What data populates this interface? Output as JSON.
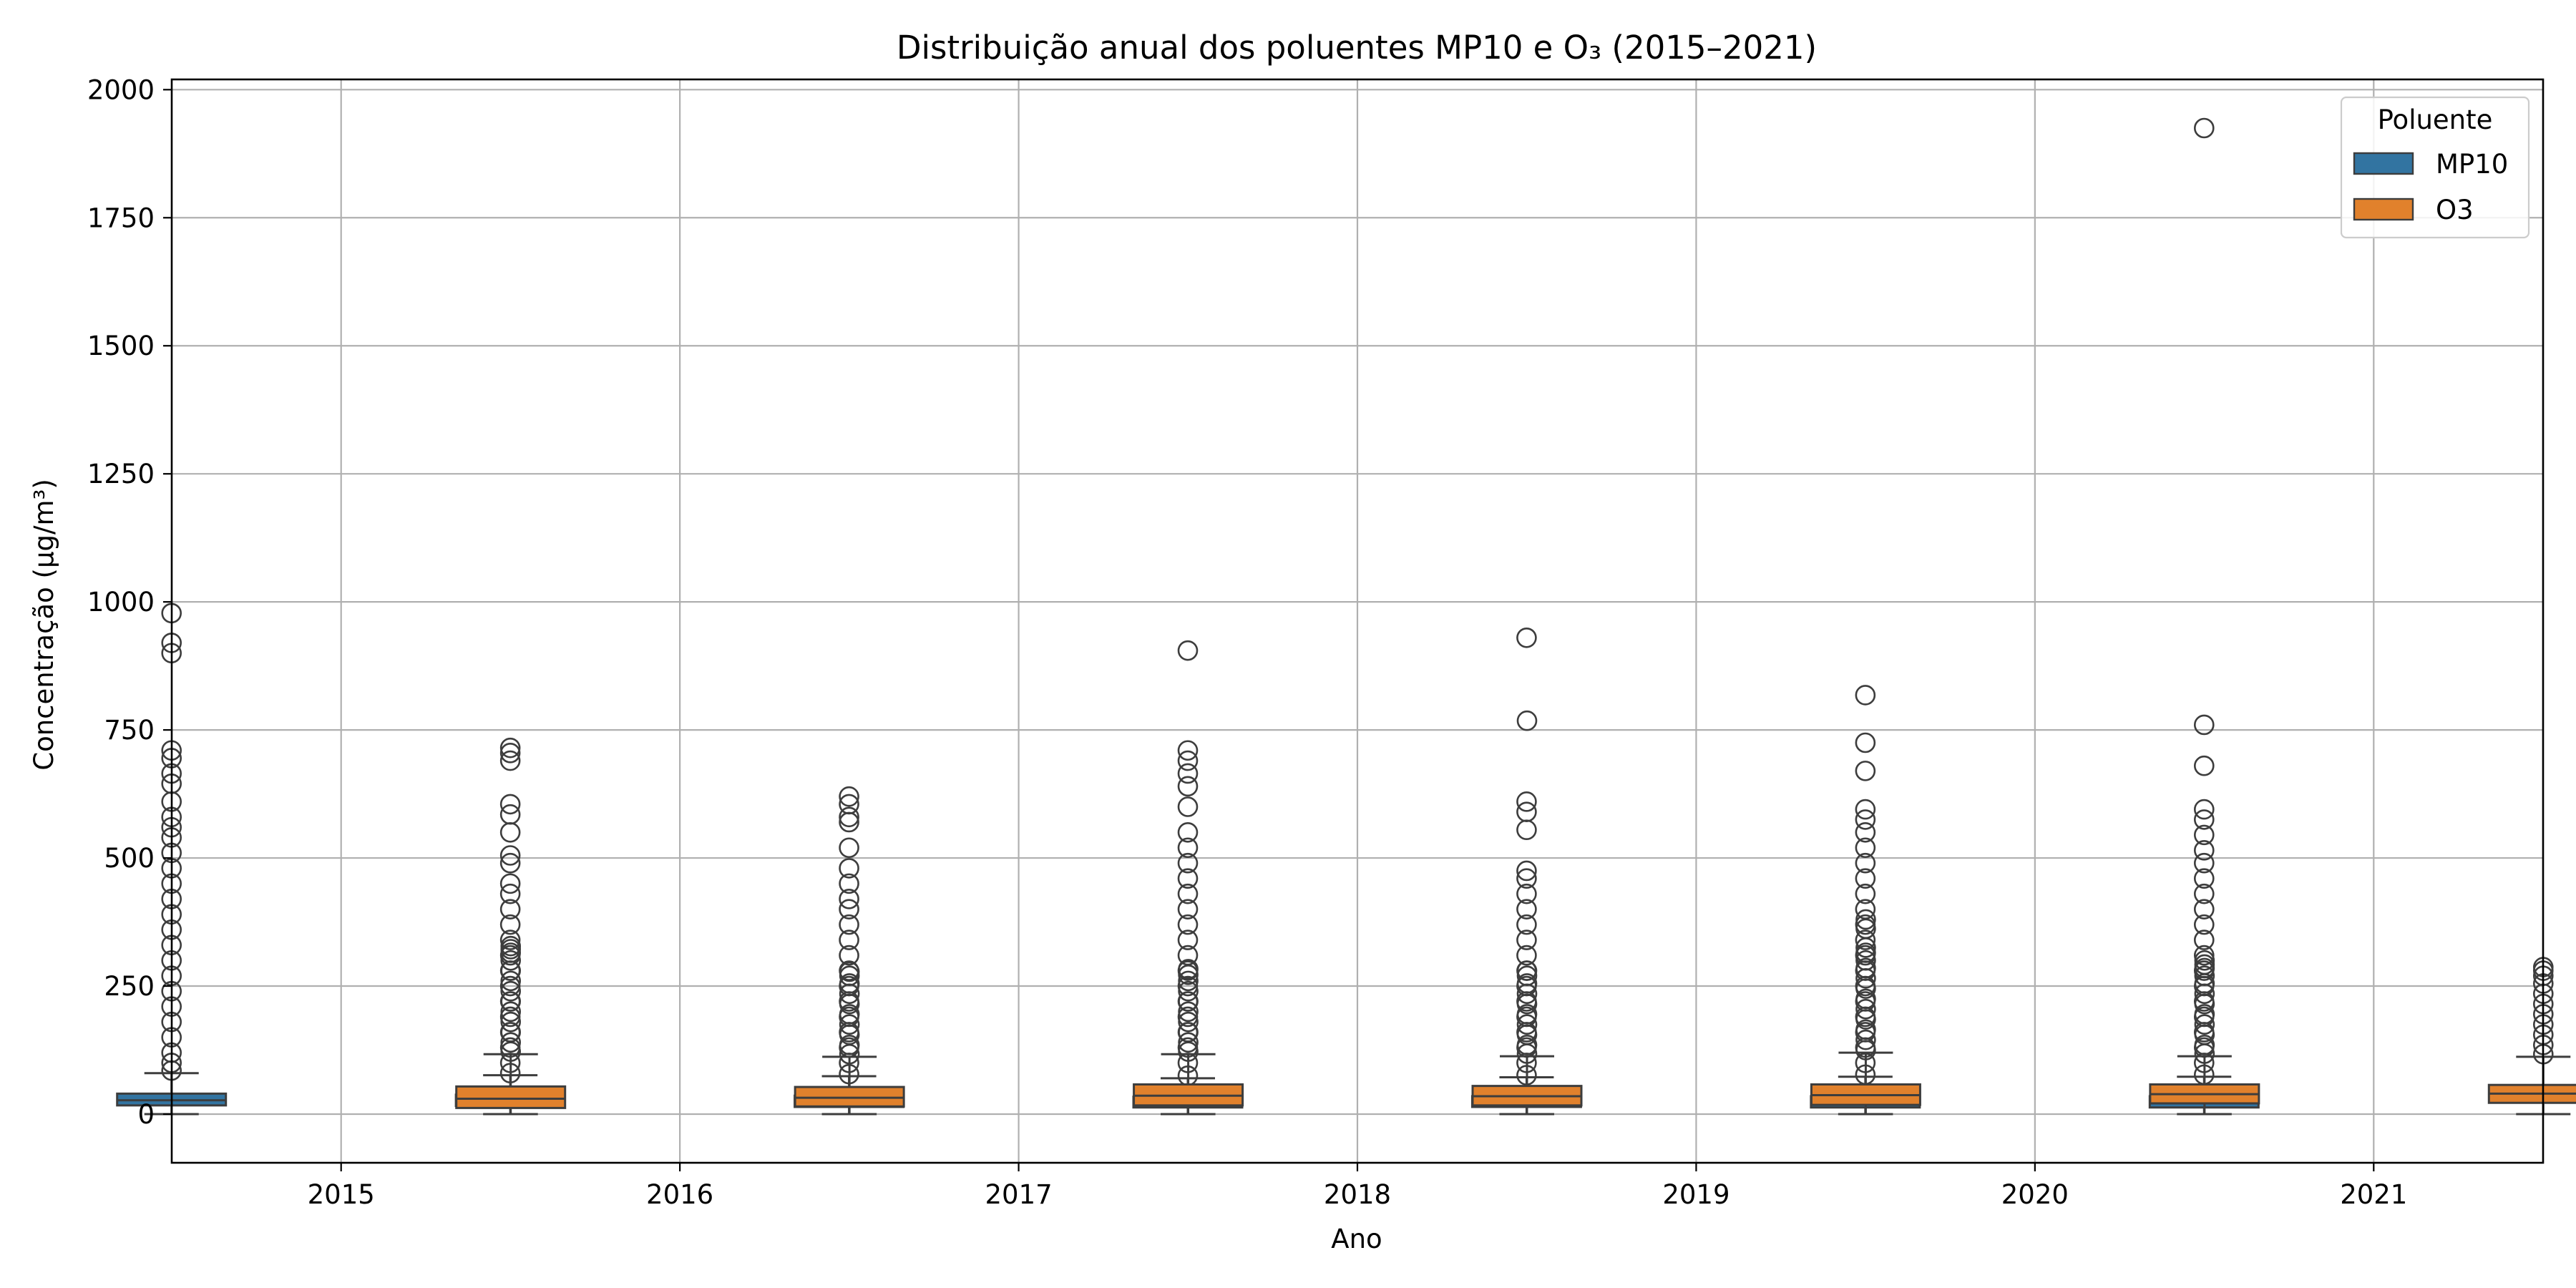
{
  "chart_data": {
    "type": "box",
    "title": "Distribuição anual dos poluentes MP10 e O₃ (2015–2021)",
    "xlabel": "Ano",
    "ylabel": "Concentração (µg/m³)",
    "categories": [
      "2015",
      "2016",
      "2017",
      "2018",
      "2019",
      "2020",
      "2021"
    ],
    "ylim": [
      -95,
      2020
    ],
    "yticks": [
      0,
      250,
      500,
      750,
      1000,
      1250,
      1500,
      1750,
      2000
    ],
    "grid": true,
    "legend": {
      "title": "Poluente",
      "position": "top-right"
    },
    "series": [
      {
        "name": "MP10",
        "color": "#3274a1",
        "boxes": [
          {
            "min": 0,
            "q1": 17,
            "median": 27,
            "q3": 40,
            "max": 80,
            "outliers": [
              85,
              100,
              120,
              150,
              180,
              210,
              240,
              270,
              300,
              330,
              360,
              390,
              420,
              450,
              480,
              510,
              540,
              560,
              580,
              610,
              645,
              665,
              695,
              710,
              900,
              920,
              978
            ]
          },
          {
            "min": 0,
            "q1": 16,
            "median": 26,
            "q3": 38,
            "max": 76,
            "outliers": [
              80,
              100,
              130,
              160,
              190,
              220,
              250,
              280,
              310,
              340,
              370,
              400,
              430,
              450,
              490,
              505,
              550,
              585,
              605,
              690,
              705,
              715
            ]
          },
          {
            "min": 0,
            "q1": 14,
            "median": 24,
            "q3": 36,
            "max": 74,
            "outliers": [
              78,
              100,
              130,
              160,
              190,
              220,
              250,
              280,
              310,
              340,
              370,
              400,
              420,
              450,
              480,
              520,
              570,
              580,
              605,
              620
            ]
          },
          {
            "min": 0,
            "q1": 13,
            "median": 22,
            "q3": 34,
            "max": 70,
            "outliers": [
              75,
              100,
              130,
              160,
              190,
              220,
              250,
              280,
              310,
              340,
              370,
              400,
              430,
              460,
              490,
              520,
              550,
              600,
              640,
              665,
              690,
              710,
              905
            ]
          },
          {
            "min": 0,
            "q1": 14,
            "median": 24,
            "q3": 35,
            "max": 72,
            "outliers": [
              76,
              100,
              130,
              160,
              190,
              220,
              250,
              280,
              310,
              340,
              370,
              400,
              430,
              460,
              475,
              555,
              590,
              610,
              930
            ]
          },
          {
            "min": 0,
            "q1": 13,
            "median": 22,
            "q3": 35,
            "max": 73,
            "outliers": [
              77,
              100,
              130,
              160,
              190,
              220,
              250,
              280,
              310,
              340,
              370,
              400,
              430,
              460,
              490,
              520,
              550,
              575,
              595,
              670,
              725,
              818
            ]
          },
          {
            "min": 0,
            "q1": 13,
            "median": 22,
            "q3": 35,
            "max": 73,
            "outliers": [
              77,
              100,
              130,
              160,
              190,
              220,
              250,
              280,
              310,
              340,
              370,
              400,
              430,
              460,
              490,
              515,
              545,
              575,
              595,
              680,
              760,
              1925
            ]
          }
        ]
      },
      {
        "name": "O3",
        "color": "#e1812c",
        "boxes": [
          {
            "min": 0,
            "q1": 12,
            "median": 30,
            "q3": 54,
            "max": 117,
            "outliers": [
              122,
              140,
              160,
              180,
              200,
              220,
              240,
              260,
              280,
              300,
              315,
              322,
              328
            ]
          },
          {
            "min": 0,
            "q1": 15,
            "median": 32,
            "q3": 53,
            "max": 112,
            "outliers": [
              117,
              135,
              155,
              175,
              195,
              215,
              235,
              255,
              270,
              278
            ]
          },
          {
            "min": 0,
            "q1": 17,
            "median": 36,
            "q3": 58,
            "max": 117,
            "outliers": [
              122,
              140,
              160,
              180,
              200,
              220,
              240,
              260,
              272,
              283
            ]
          },
          {
            "min": 0,
            "q1": 17,
            "median": 35,
            "q3": 55,
            "max": 113,
            "outliers": [
              118,
              135,
              155,
              175,
              195,
              215,
              235,
              255,
              270,
              280,
              768
            ]
          },
          {
            "min": 0,
            "q1": 18,
            "median": 37,
            "q3": 58,
            "max": 120,
            "outliers": [
              125,
              145,
              165,
              185,
              205,
              225,
              245,
              265,
              285,
              300,
              315,
              325,
              362,
              380
            ]
          },
          {
            "min": 0,
            "q1": 21,
            "median": 39,
            "q3": 58,
            "max": 113,
            "outliers": [
              118,
              135,
              155,
              175,
              195,
              215,
              235,
              255,
              270,
              285,
              292,
              300
            ]
          },
          {
            "min": 0,
            "q1": 22,
            "median": 40,
            "q3": 57,
            "max": 112,
            "outliers": [
              117,
              135,
              155,
              175,
              195,
              215,
              235,
              255,
              270,
              280,
              287
            ]
          }
        ]
      }
    ]
  }
}
